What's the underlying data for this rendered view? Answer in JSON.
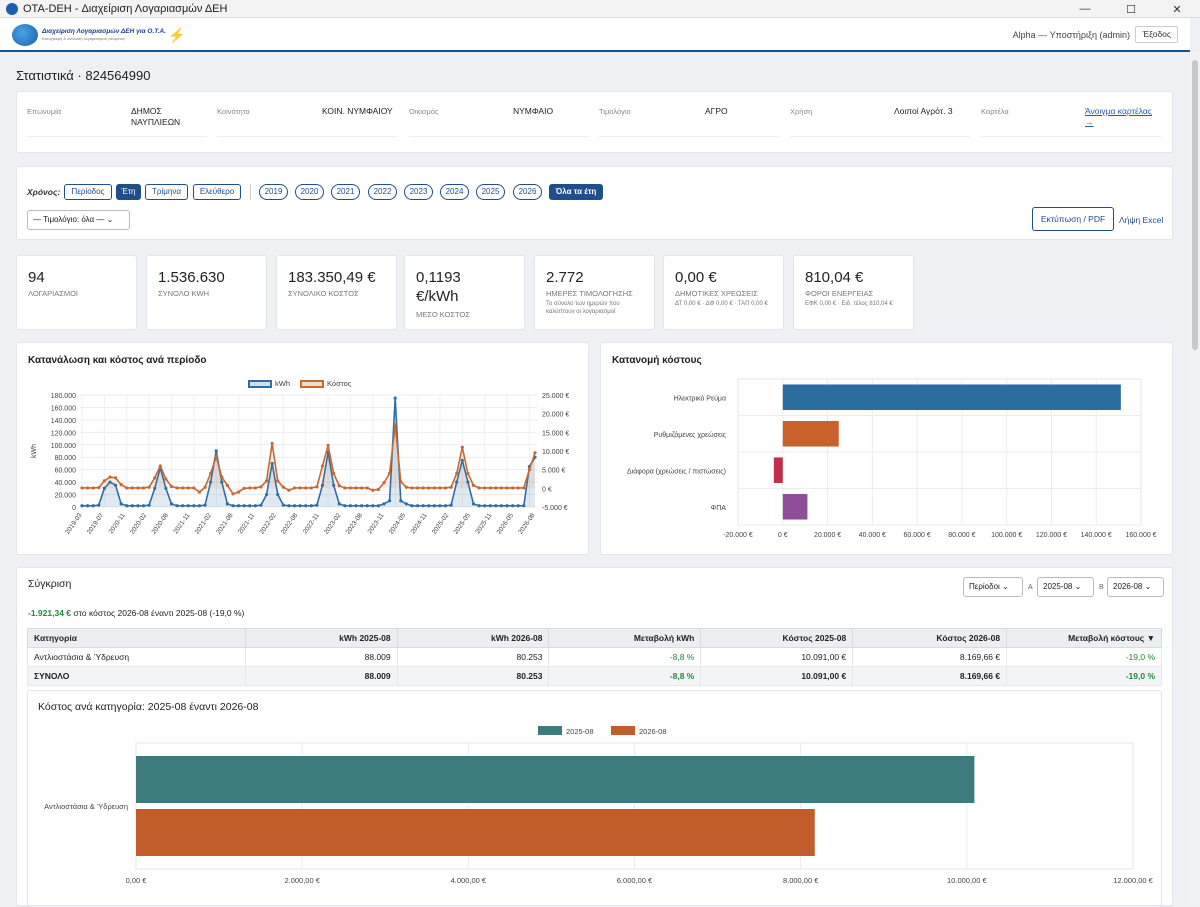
{
  "window": {
    "title": "OTA-DEH - Διαχείριση Λογαριασμών ΔΕΗ",
    "minimize": "—",
    "maximize": "☐",
    "close": "✕"
  },
  "header": {
    "logo_line1": "Διαχείριση Λογαριασμών ΔΕΗ για Ο.Τ.Α.",
    "logo_line2": "Καταγραφή & ανάλυση λογαριασμών ρεύματος",
    "user": "Alpha — Υποστήριξη (admin)",
    "logout": "Έξοδος"
  },
  "page": {
    "title": "Στατιστικά · 824564990"
  },
  "info": [
    {
      "label": "Επωνυμία",
      "value": "ΔΗΜΟΣ ΝΑΥΠΛΙΕΩΝ"
    },
    {
      "label": "Κοινότητα",
      "value": "ΚΟΙΝ. ΝΥΜΦΑΙΟΥ"
    },
    {
      "label": "Οικισμός",
      "value": "ΝΥΜΦΑΙΟ"
    },
    {
      "label": "Τιμολόγιο",
      "value": "ΑΓΡΟ"
    },
    {
      "label": "Χρήση",
      "value": "Λοιποί Αγρότ. 3"
    },
    {
      "label": "Καρτέλα",
      "value": "Άνοιγμα καρτέλας →"
    }
  ],
  "filters": {
    "label": "Χρόνος:",
    "modes": [
      "Περίοδος",
      "Έτη",
      "Τρίμηνα",
      "Ελεύθερο"
    ],
    "active_mode": "Έτη",
    "years": [
      "2019",
      "2020",
      "2021",
      "2022",
      "2023",
      "2024",
      "2025",
      "2026"
    ],
    "all_years": "Όλα τα έτη",
    "tariff_select": "— Τιμολόγιο: όλα —",
    "print": "Εκτύπωση / PDF",
    "excel": "Λήψη Excel"
  },
  "kpis": [
    {
      "value": "94",
      "label": "ΛΟΓΑΡΙΑΣΜΟΙ",
      "sub": ""
    },
    {
      "value": "1.536.630",
      "label": "ΣΥΝΟΛΟ KWH",
      "sub": ""
    },
    {
      "value": "183.350,49 €",
      "label": "ΣΥΝΟΛΙΚΟ ΚΟΣΤΟΣ",
      "sub": ""
    },
    {
      "value": "0,1193 €/kWh",
      "label": "ΜΕΣΟ ΚΟΣΤΟΣ",
      "sub": ""
    },
    {
      "value": "2.772",
      "label": "ΗΜΕΡΕΣ ΤΙΜΟΛΟΓΗΣΗΣ",
      "sub": "Το σύνολο των ημερών που καλύπτουν οι λογαριασμοί"
    },
    {
      "value": "0,00 €",
      "label": "ΔΗΜΟΤΙΚΕΣ ΧΡΕΩΣΕΙΣ",
      "sub": "ΔΤ 0,00 € · ΔΦ 0,00 € · ΤΑΠ 0,00 €"
    },
    {
      "value": "810,04 €",
      "label": "ΦΟΡΟΙ ΕΝΕΡΓΕΙΑΣ",
      "sub": "ΕΦΚ 0,00 € · Ειδ. τέλος 810,04 €"
    }
  ],
  "line_chart": {
    "title": "Κατανάλωση και κόστος ανά περίοδο",
    "legend": [
      "kWh",
      "Κόστος"
    ],
    "ylabel_left": "kWh",
    "left_ticks": [
      "0",
      "20.000",
      "40.000",
      "60.000",
      "80.000",
      "100.000",
      "120.000",
      "140.000",
      "160.000",
      "180.000"
    ],
    "right_ticks": [
      "-5.000 €",
      "0 €",
      "5.000 €",
      "10.000 €",
      "15.000 €",
      "20.000 €",
      "25.000 €"
    ],
    "x_ticks": [
      "2019-03",
      "2019-07",
      "2020-11",
      "2020-02",
      "2020-08",
      "2021-11",
      "2021-02",
      "2021-08",
      "2021-11",
      "2022-02",
      "2022-08",
      "2022-11",
      "2023-02",
      "2023-08",
      "2023-11",
      "2024-05",
      "2024-11",
      "2025-02",
      "2025-05",
      "2025-11",
      "2026-05",
      "2026-08"
    ]
  },
  "bar_chart": {
    "title": "Κατανομή κόστους",
    "x_ticks": [
      "-20.000 €",
      "0 €",
      "20.000 €",
      "40.000 €",
      "60.000 €",
      "80.000 €",
      "100.000 €",
      "120.000 €",
      "140.000 €",
      "160.000 €"
    ]
  },
  "comparison": {
    "title": "Σύγκριση",
    "summary_value": "-1.921,34 €",
    "summary_text": "στο κόστος 2026-08 έναντι 2025-08 (-19,0 %)",
    "mode_select": "Περίοδοι",
    "a_label": "Α",
    "a_value": "2025-08",
    "b_label": "Β",
    "b_value": "2026-08",
    "headers": [
      "Κατηγορία",
      "kWh 2025-08",
      "kWh 2026-08",
      "Μεταβολή kWh",
      "Κόστος 2025-08",
      "Κόστος 2026-08",
      "Μεταβολή κόστους ▼"
    ],
    "rows": [
      [
        "Αντλιοστάσια & Ύδρευση",
        "88.009",
        "80.253",
        "-8,8 %",
        "10.091,00 €",
        "8.169,66 €",
        "-19,0 %"
      ]
    ],
    "total": [
      "ΣΥΝΟΛΟ",
      "88.009",
      "80.253",
      "-8,8 %",
      "10.091,00 €",
      "8.169,66 €",
      "-19,0 %"
    ]
  },
  "category_chart": {
    "title": "Κόστος ανά κατηγορία: 2025-08 έναντι 2026-08",
    "x_ticks": [
      "0,00 €",
      "2.000,00 €",
      "4.000,00 €",
      "6.000,00 €",
      "8.000,00 €",
      "10.000,00 €",
      "12.000,00 €"
    ]
  },
  "chart_data": [
    {
      "type": "line",
      "title": "Κατανάλωση και κόστος ανά περίοδο",
      "ylabel": "kWh",
      "ylim": [
        0,
        180000
      ],
      "y2lim": [
        -5000,
        25000
      ],
      "series": [
        {
          "name": "kWh",
          "axis": "left",
          "color": "#2f6ea5",
          "values": [
            2000,
            2000,
            2000,
            3000,
            30000,
            40000,
            35000,
            5000,
            2000,
            2000,
            2000,
            2000,
            3000,
            30000,
            63000,
            30000,
            5000,
            2000,
            2000,
            2000,
            2000,
            2000,
            3000,
            40000,
            90000,
            40000,
            5000,
            2000,
            2000,
            2000,
            2000,
            2000,
            3000,
            20000,
            70000,
            20000,
            3000,
            2000,
            2000,
            2000,
            2000,
            2000,
            3000,
            35000,
            88000,
            35000,
            5000,
            2000,
            2000,
            2000,
            2000,
            2000,
            2000,
            2000,
            5000,
            10000,
            175000,
            10000,
            5000,
            2000,
            2000,
            2000,
            2000,
            2000,
            2000,
            2000,
            3000,
            40000,
            75000,
            40000,
            5000,
            2000,
            2000,
            2000,
            2000,
            2000,
            2000,
            2000,
            2000,
            2000,
            65000,
            80000
          ]
        },
        {
          "name": "Κόστος",
          "axis": "right",
          "color": "#c46a34",
          "values": [
            100,
            100,
            100,
            200,
            2000,
            3000,
            2800,
            1000,
            100,
            100,
            100,
            100,
            300,
            2800,
            6000,
            2500,
            500,
            100,
            100,
            100,
            100,
            -1000,
            300,
            4000,
            8500,
            3000,
            800,
            -1500,
            -1000,
            0,
            100,
            100,
            400,
            2000,
            12000,
            2000,
            300,
            -500,
            100,
            100,
            100,
            100,
            400,
            6000,
            11500,
            4000,
            700,
            100,
            100,
            100,
            100,
            100,
            -500,
            -300,
            1500,
            4000,
            17000,
            1800,
            300,
            100,
            100,
            100,
            100,
            100,
            100,
            100,
            300,
            4000,
            11000,
            4000,
            800,
            100,
            100,
            100,
            100,
            100,
            100,
            100,
            100,
            100,
            5000,
            9500
          ]
        }
      ]
    },
    {
      "type": "bar",
      "title": "Κατανομή κόστους",
      "orientation": "horizontal",
      "categories": [
        "Ηλεκτρικό Ρεύμα",
        "Ρυθμιζόμενες χρεώσεις",
        "Διάφορα (χρεώσεις / πιστώσεις)",
        "ΦΠΑ"
      ],
      "values": [
        151000,
        25000,
        -4000,
        11000
      ],
      "colors": [
        "#2c6da0",
        "#c9622a",
        "#c0304a",
        "#8e4e98"
      ],
      "xlim": [
        -20000,
        160000
      ]
    },
    {
      "type": "bar",
      "title": "Κόστος ανά κατηγορία: 2025-08 έναντι 2026-08",
      "orientation": "horizontal",
      "categories": [
        "Αντλιοστάσια & Ύδρευση"
      ],
      "series": [
        {
          "name": "2025-08",
          "values": [
            10091.0
          ],
          "color": "#3e7b7f"
        },
        {
          "name": "2026-08",
          "values": [
            8169.66
          ],
          "color": "#c15d2b"
        }
      ],
      "xlim": [
        0,
        12000
      ]
    }
  ]
}
